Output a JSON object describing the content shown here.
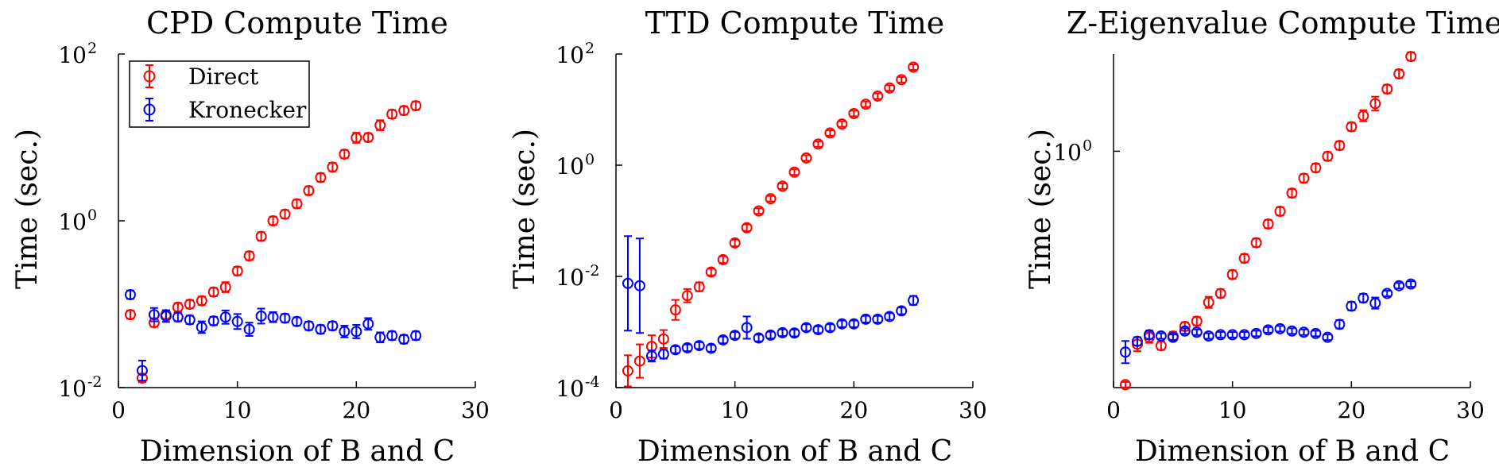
{
  "chart_data": [
    {
      "type": "scatter",
      "title": "CPD Compute Time",
      "xlabel": "Dimension of B and C",
      "ylabel": "Time (sec.)",
      "xlim": [
        0,
        30
      ],
      "ylim": [
        0.01,
        100
      ],
      "yscale": "log",
      "xticks": [
        "0",
        "10",
        "20",
        "30"
      ],
      "yticks": [
        {
          "base": "10",
          "exp": "-2",
          "value": 0.01
        },
        {
          "base": "10",
          "exp": "0",
          "value": 1
        },
        {
          "base": "10",
          "exp": "2",
          "value": 100
        }
      ],
      "legend": {
        "position": "top-left",
        "entries": [
          "Direct",
          "Kronecker"
        ]
      },
      "series": [
        {
          "name": "Direct",
          "color": "#ff0000",
          "x": [
            1,
            2,
            3,
            4,
            5,
            6,
            7,
            8,
            9,
            10,
            11,
            12,
            13,
            14,
            15,
            16,
            17,
            18,
            19,
            20,
            21,
            22,
            23,
            24,
            25
          ],
          "y": [
            0.075,
            0.013,
            0.06,
            0.075,
            0.092,
            0.1,
            0.11,
            0.14,
            0.16,
            0.25,
            0.38,
            0.65,
            1.0,
            1.2,
            1.6,
            2.3,
            3.3,
            4.4,
            6.3,
            9.9,
            10,
            14,
            19,
            21,
            24
          ],
          "err": [
            0.05,
            0.05,
            0.05,
            0.05,
            0.05,
            0.05,
            0.05,
            0.05,
            0.06,
            0.05,
            0.05,
            0.05,
            0.05,
            0.05,
            0.05,
            0.05,
            0.05,
            0.05,
            0.05,
            0.06,
            0.05,
            0.06,
            0.05,
            0.05,
            0.05
          ]
        },
        {
          "name": "Kronecker",
          "color": "#0000ff",
          "x": [
            1,
            2,
            3,
            4,
            5,
            6,
            7,
            8,
            9,
            10,
            11,
            12,
            13,
            14,
            15,
            16,
            17,
            18,
            19,
            20,
            21,
            22,
            23,
            24,
            25
          ],
          "y": [
            0.13,
            0.016,
            0.075,
            0.072,
            0.07,
            0.065,
            0.053,
            0.063,
            0.07,
            0.062,
            0.05,
            0.072,
            0.07,
            0.068,
            0.062,
            0.055,
            0.05,
            0.055,
            0.047,
            0.047,
            0.058,
            0.04,
            0.042,
            0.038,
            0.042
          ],
          "err": [
            0.05,
            0.12,
            0.08,
            0.07,
            0.05,
            0.05,
            0.07,
            0.05,
            0.08,
            0.09,
            0.08,
            0.09,
            0.06,
            0.05,
            0.05,
            0.05,
            0.05,
            0.05,
            0.07,
            0.08,
            0.07,
            0.06,
            0.05,
            0.05,
            0.05
          ]
        }
      ]
    },
    {
      "type": "scatter",
      "title": "TTD Compute Time",
      "xlabel": "Dimension of B and C",
      "ylabel": "Time (sec.)",
      "xlim": [
        0,
        30
      ],
      "ylim": [
        0.0001,
        100
      ],
      "yscale": "log",
      "xticks": [
        "0",
        "10",
        "20",
        "30"
      ],
      "yticks": [
        {
          "base": "10",
          "exp": "-4",
          "value": 0.0001
        },
        {
          "base": "10",
          "exp": "-2",
          "value": 0.01
        },
        {
          "base": "10",
          "exp": "0",
          "value": 1
        },
        {
          "base": "10",
          "exp": "2",
          "value": 100
        }
      ],
      "series": [
        {
          "name": "Direct",
          "color": "#ff0000",
          "x": [
            1,
            2,
            3,
            4,
            5,
            6,
            7,
            8,
            9,
            10,
            11,
            12,
            13,
            14,
            15,
            16,
            17,
            18,
            19,
            20,
            21,
            22,
            23,
            24,
            25
          ],
          "y": [
            0.0002,
            0.0003,
            0.00055,
            0.00075,
            0.0025,
            0.0045,
            0.0065,
            0.012,
            0.02,
            0.04,
            0.075,
            0.15,
            0.25,
            0.42,
            0.75,
            1.35,
            2.4,
            3.8,
            5.5,
            8.5,
            12.5,
            17.5,
            24.5,
            34.5,
            58
          ],
          "err": [
            0.28,
            0.3,
            0.2,
            0.16,
            0.18,
            0.12,
            0.08,
            0.06,
            0.06,
            0.06,
            0.06,
            0.05,
            0.05,
            0.05,
            0.05,
            0.05,
            0.05,
            0.05,
            0.05,
            0.05,
            0.05,
            0.05,
            0.05,
            0.05,
            0.05
          ]
        },
        {
          "name": "Kronecker",
          "color": "#0000ff",
          "x": [
            1,
            2,
            3,
            4,
            5,
            6,
            7,
            8,
            9,
            10,
            11,
            12,
            13,
            14,
            15,
            16,
            17,
            18,
            19,
            20,
            21,
            22,
            23,
            24,
            25
          ],
          "y": [
            0.0075,
            0.0068,
            0.00037,
            0.0004,
            0.00048,
            0.00052,
            0.00057,
            0.00051,
            0.00072,
            0.00087,
            0.0012,
            0.00078,
            0.00088,
            0.00097,
            0.00096,
            0.0012,
            0.0011,
            0.0012,
            0.0014,
            0.0014,
            0.0017,
            0.0017,
            0.0019,
            0.0024,
            0.0037
          ],
          "err": [
            0.85,
            0.85,
            0.1,
            0.08,
            0.06,
            0.06,
            0.06,
            0.06,
            0.06,
            0.06,
            0.2,
            0.06,
            0.06,
            0.06,
            0.06,
            0.06,
            0.06,
            0.06,
            0.06,
            0.06,
            0.06,
            0.06,
            0.06,
            0.06,
            0.08
          ]
        }
      ]
    },
    {
      "type": "scatter",
      "title": "Z-Eigenvalue Compute Time",
      "xlabel": "Dimension of B and C",
      "ylabel": "Time (sec.)",
      "xlim": [
        0,
        30
      ],
      "ylim": [
        0.02,
        5
      ],
      "yscale": "log",
      "xticks": [
        "0",
        "10",
        "20",
        "30"
      ],
      "yticks": [
        {
          "base": "10",
          "exp": "0",
          "value": 1
        }
      ],
      "series": [
        {
          "name": "Direct",
          "color": "#ff0000",
          "x": [
            1,
            2,
            3,
            4,
            5,
            6,
            7,
            8,
            9,
            10,
            11,
            12,
            13,
            14,
            15,
            16,
            17,
            18,
            19,
            20,
            21,
            22,
            23,
            24,
            25
          ],
          "y": [
            0.021,
            0.041,
            0.046,
            0.04,
            0.047,
            0.055,
            0.06,
            0.082,
            0.095,
            0.13,
            0.17,
            0.22,
            0.3,
            0.37,
            0.5,
            0.64,
            0.76,
            0.92,
            1.1,
            1.5,
            1.8,
            2.2,
            2.8,
            3.6,
            4.8
          ],
          "err": [
            0.02,
            0.05,
            0.04,
            0.03,
            0.03,
            0.03,
            0.03,
            0.04,
            0.03,
            0.03,
            0.03,
            0.03,
            0.03,
            0.03,
            0.03,
            0.03,
            0.03,
            0.03,
            0.03,
            0.03,
            0.04,
            0.05,
            0.03,
            0.03,
            0.03
          ]
        },
        {
          "name": "Kronecker",
          "color": "#0000ff",
          "x": [
            1,
            2,
            3,
            4,
            5,
            6,
            7,
            8,
            9,
            10,
            11,
            12,
            13,
            14,
            15,
            16,
            17,
            18,
            19,
            20,
            21,
            22,
            23,
            24,
            25
          ],
          "y": [
            0.036,
            0.043,
            0.048,
            0.047,
            0.046,
            0.051,
            0.05,
            0.047,
            0.048,
            0.048,
            0.048,
            0.049,
            0.052,
            0.053,
            0.051,
            0.05,
            0.049,
            0.046,
            0.057,
            0.077,
            0.088,
            0.081,
            0.095,
            0.108,
            0.111
          ],
          "err": [
            0.08,
            0.03,
            0.03,
            0.02,
            0.02,
            0.02,
            0.02,
            0.02,
            0.02,
            0.02,
            0.02,
            0.02,
            0.02,
            0.02,
            0.02,
            0.02,
            0.02,
            0.02,
            0.03,
            0.03,
            0.03,
            0.04,
            0.02,
            0.02,
            0.02
          ]
        }
      ]
    }
  ]
}
